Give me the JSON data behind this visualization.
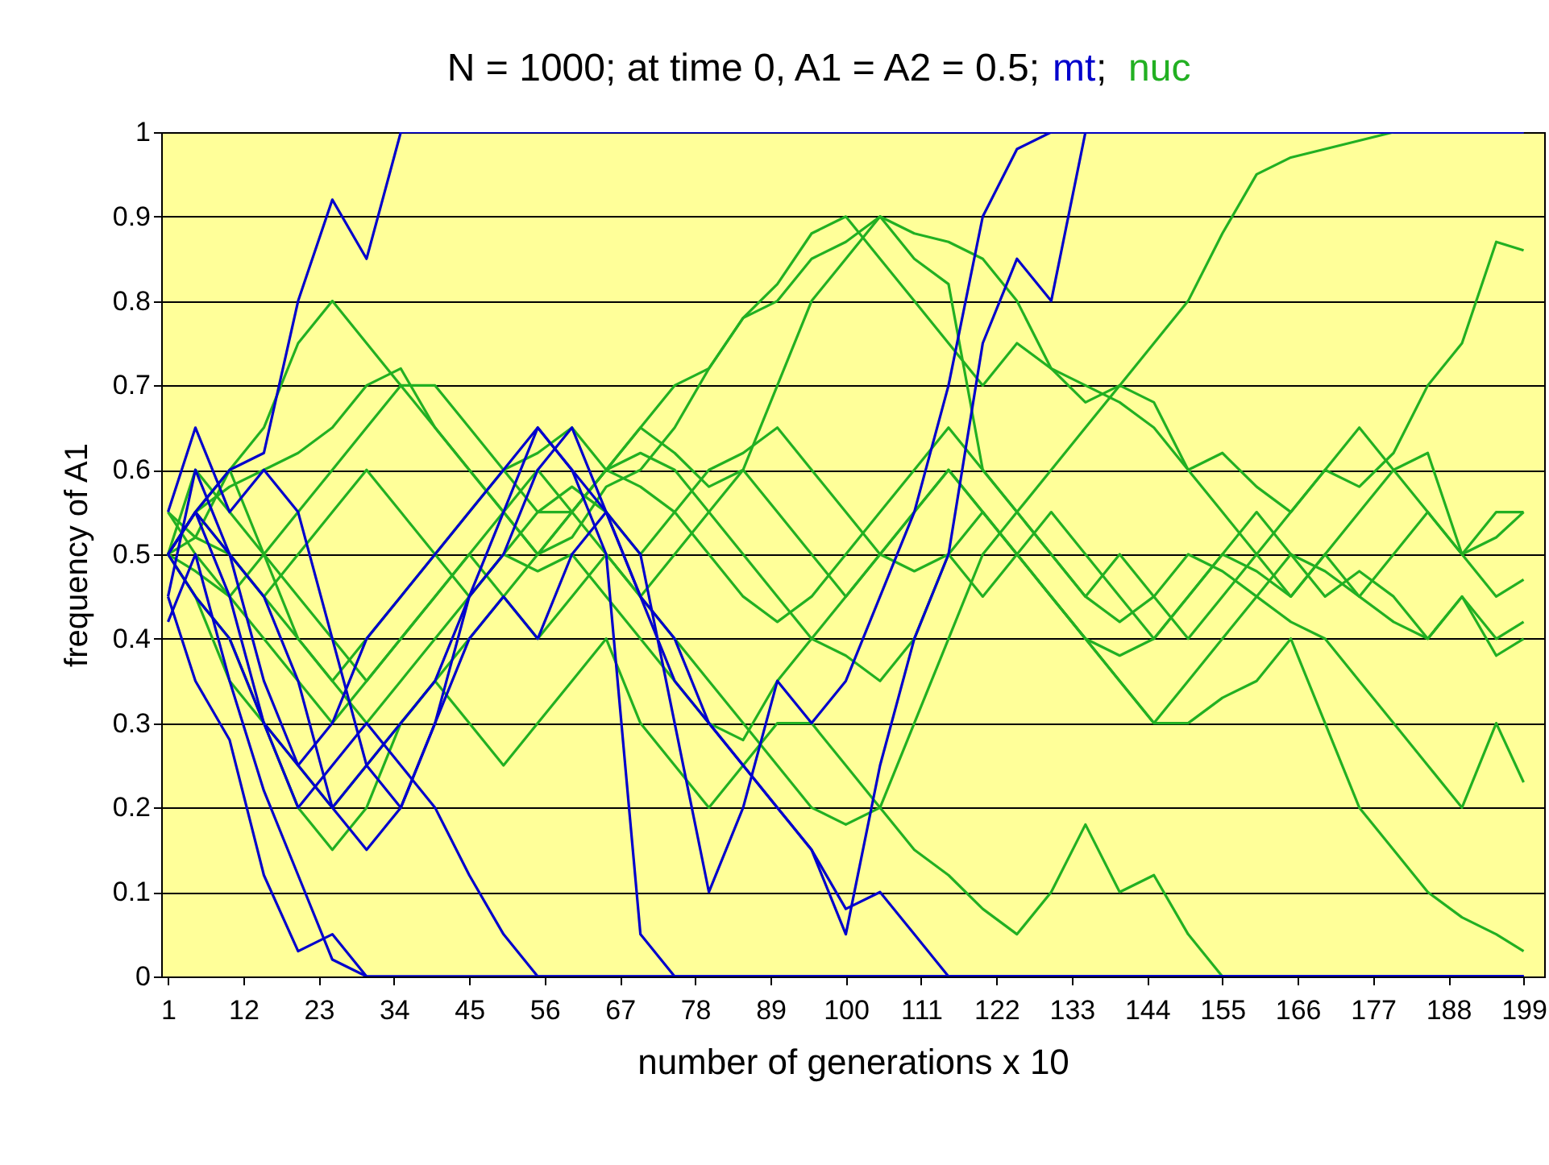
{
  "chart_data": {
    "type": "line",
    "title": "N = 1000; at time 0, A1 = A2 = 0.5;",
    "annotations": [
      ";"
    ],
    "xlabel": "number of generations x 10",
    "ylabel": "frequency of A1",
    "x": [
      1,
      5,
      10,
      15,
      20,
      25,
      30,
      35,
      40,
      45,
      50,
      55,
      60,
      65,
      70,
      75,
      80,
      85,
      90,
      95,
      100,
      105,
      110,
      115,
      120,
      125,
      130,
      135,
      140,
      145,
      150,
      155,
      160,
      165,
      170,
      175,
      180,
      185,
      190,
      195,
      199
    ],
    "xlim": [
      0,
      202
    ],
    "xticks": [
      1,
      12,
      23,
      34,
      45,
      56,
      67,
      78,
      89,
      100,
      111,
      122,
      133,
      144,
      155,
      166,
      177,
      188,
      199
    ],
    "ylim": [
      0,
      1
    ],
    "yticks": [
      0,
      0.1,
      0.2,
      0.3,
      0.4,
      0.5,
      0.6,
      0.7,
      0.8,
      0.9,
      1
    ],
    "grid": "y",
    "legend": "top",
    "marker": "none",
    "line_style": "solid",
    "series": [
      {
        "name": "mt",
        "color": "#0000cc",
        "values": [
          0.5,
          0.55,
          0.6,
          0.62,
          0.8,
          0.92,
          0.85,
          1,
          1,
          1,
          1,
          1,
          1,
          1,
          1,
          1,
          1,
          1,
          1,
          1,
          1,
          1,
          1,
          1,
          1,
          1,
          1,
          1,
          1,
          1,
          1,
          1,
          1,
          1,
          1,
          1,
          1,
          1,
          1,
          1,
          1
        ]
      },
      {
        "color": "#0000cc",
        "values": [
          0.45,
          0.35,
          0.28,
          0.12,
          0.03,
          0.05,
          0,
          0,
          0,
          0,
          0,
          0,
          0,
          0,
          0,
          0,
          0,
          0,
          0,
          0,
          0,
          0,
          0,
          0,
          0,
          0,
          0,
          0,
          0,
          0,
          0,
          0,
          0,
          0,
          0,
          0,
          0,
          0,
          0,
          0,
          0
        ]
      },
      {
        "color": "#0000cc",
        "values": [
          0.42,
          0.5,
          0.35,
          0.22,
          0.12,
          0.02,
          0,
          0,
          0,
          0,
          0,
          0,
          0,
          0,
          0,
          0,
          0,
          0,
          0,
          0,
          0,
          0,
          0,
          0,
          0,
          0,
          0,
          0,
          0,
          0,
          0,
          0,
          0,
          0,
          0,
          0,
          0,
          0,
          0,
          0,
          0
        ]
      },
      {
        "color": "#0000cc",
        "values": [
          0.5,
          0.55,
          0.45,
          0.3,
          0.2,
          0.25,
          0.3,
          0.25,
          0.2,
          0.12,
          0.05,
          0,
          0,
          0,
          0,
          0,
          0,
          0,
          0,
          0,
          0,
          0,
          0,
          0,
          0,
          0,
          0,
          0,
          0,
          0,
          0,
          0,
          0,
          0,
          0,
          0,
          0,
          0,
          0,
          0,
          0
        ]
      },
      {
        "color": "#0000cc",
        "values": [
          0.45,
          0.6,
          0.5,
          0.35,
          0.25,
          0.3,
          0.4,
          0.45,
          0.5,
          0.55,
          0.6,
          0.65,
          0.6,
          0.5,
          0.05,
          0,
          0,
          0,
          0,
          0,
          0,
          0,
          0,
          0,
          0,
          0,
          0,
          0,
          0,
          0,
          0,
          0,
          0,
          0,
          0,
          0,
          0,
          0,
          0,
          0,
          0
        ]
      },
      {
        "color": "#0000cc",
        "values": [
          0.55,
          0.65,
          0.55,
          0.6,
          0.55,
          0.4,
          0.25,
          0.2,
          0.3,
          0.45,
          0.5,
          0.6,
          0.65,
          0.55,
          0.45,
          0.4,
          0.3,
          0.25,
          0.2,
          0.15,
          0.08,
          0.1,
          0.05,
          0,
          0,
          0,
          0,
          0,
          0,
          0,
          0,
          0,
          0,
          0,
          0,
          0,
          0,
          0,
          0,
          0,
          0
        ]
      },
      {
        "color": "#0000cc",
        "values": [
          0.5,
          0.45,
          0.4,
          0.3,
          0.25,
          0.2,
          0.25,
          0.3,
          0.35,
          0.45,
          0.55,
          0.65,
          0.6,
          0.55,
          0.5,
          0.3,
          0.1,
          0.2,
          0.35,
          0.3,
          0.35,
          0.45,
          0.55,
          0.7,
          0.9,
          0.98,
          1,
          1,
          1,
          1,
          1,
          1,
          1,
          1,
          1,
          1,
          1,
          1,
          1,
          1,
          1
        ]
      },
      {
        "color": "#0000cc",
        "values": [
          0.5,
          0.55,
          0.5,
          0.45,
          0.35,
          0.2,
          0.15,
          0.2,
          0.3,
          0.4,
          0.45,
          0.4,
          0.5,
          0.55,
          0.45,
          0.35,
          0.3,
          0.25,
          0.2,
          0.15,
          0.05,
          0.25,
          0.4,
          0.5,
          0.75,
          0.85,
          0.8,
          1,
          1,
          1,
          1,
          1,
          1,
          1,
          1,
          1,
          1,
          1,
          1,
          1,
          1
        ]
      },
      {
        "name": "nuc",
        "color": "#22b022",
        "values": [
          0.5,
          0.55,
          0.58,
          0.6,
          0.62,
          0.65,
          0.7,
          0.72,
          0.65,
          0.6,
          0.55,
          0.5,
          0.52,
          0.58,
          0.6,
          0.65,
          0.72,
          0.78,
          0.8,
          0.85,
          0.87,
          0.9,
          0.88,
          0.87,
          0.85,
          0.8,
          0.72,
          0.68,
          0.7,
          0.75,
          0.8,
          0.88,
          0.95,
          0.97,
          0.98,
          0.99,
          1,
          null,
          null,
          null,
          null
        ]
      },
      {
        "color": "#22b022",
        "values": [
          0.55,
          0.5,
          0.45,
          0.4,
          0.35,
          0.3,
          0.35,
          0.4,
          0.45,
          0.5,
          0.55,
          0.6,
          0.55,
          0.6,
          0.65,
          0.62,
          0.58,
          0.6,
          0.7,
          0.8,
          0.85,
          0.9,
          0.85,
          0.82,
          0.6,
          0.55,
          0.5,
          0.45,
          0.5,
          0.45,
          0.4,
          0.45,
          0.5,
          0.55,
          0.6,
          0.58,
          0.62,
          0.7,
          0.75,
          0.87,
          0.86
        ]
      },
      {
        "color": "#22b022",
        "values": [
          0.5,
          0.52,
          0.6,
          0.65,
          0.75,
          0.8,
          0.75,
          0.7,
          0.65,
          0.6,
          0.55,
          0.5,
          0.55,
          0.6,
          0.65,
          0.7,
          0.72,
          0.78,
          0.82,
          0.88,
          0.9,
          0.85,
          0.8,
          0.75,
          0.7,
          0.75,
          0.72,
          0.7,
          0.68,
          0.65,
          0.6,
          0.62,
          0.58,
          0.55,
          0.6,
          0.65,
          0.6,
          0.55,
          0.5,
          0.52,
          0.55
        ]
      },
      {
        "color": "#22b022",
        "values": [
          0.5,
          0.48,
          0.45,
          0.5,
          0.55,
          0.6,
          0.65,
          0.7,
          0.7,
          0.65,
          0.6,
          0.55,
          0.55,
          0.6,
          0.58,
          0.55,
          0.5,
          0.45,
          0.42,
          0.45,
          0.5,
          0.55,
          0.6,
          0.65,
          0.6,
          0.55,
          0.5,
          0.45,
          0.42,
          0.45,
          0.5,
          0.48,
          0.45,
          0.5,
          0.48,
          0.45,
          0.5,
          0.55,
          0.5,
          0.45,
          0.47
        ]
      },
      {
        "color": "#22b022",
        "values": [
          0.55,
          0.52,
          0.5,
          0.45,
          0.4,
          0.35,
          0.3,
          0.35,
          0.4,
          0.45,
          0.5,
          0.55,
          0.58,
          0.55,
          0.5,
          0.55,
          0.6,
          0.62,
          0.65,
          0.6,
          0.55,
          0.5,
          0.48,
          0.5,
          0.45,
          0.5,
          0.55,
          0.5,
          0.45,
          0.4,
          0.45,
          0.5,
          0.55,
          0.5,
          0.45,
          0.48,
          0.45,
          0.4,
          0.45,
          0.4,
          0.42
        ]
      },
      {
        "color": "#22b022",
        "values": [
          0.5,
          0.45,
          0.4,
          0.3,
          0.25,
          0.2,
          0.25,
          0.3,
          0.35,
          0.4,
          0.45,
          0.5,
          0.55,
          0.5,
          0.45,
          0.5,
          0.55,
          0.6,
          0.55,
          0.5,
          0.45,
          0.5,
          0.55,
          0.6,
          0.55,
          0.5,
          0.45,
          0.4,
          0.35,
          0.3,
          0.35,
          0.4,
          0.45,
          0.42,
          0.4,
          0.35,
          0.3,
          0.25,
          0.2,
          0.3,
          0.23
        ]
      },
      {
        "color": "#22b022",
        "values": [
          0.5,
          0.55,
          0.5,
          0.45,
          0.5,
          0.55,
          0.6,
          0.55,
          0.5,
          0.45,
          0.5,
          0.48,
          0.5,
          0.45,
          0.4,
          0.35,
          0.3,
          0.28,
          0.35,
          0.4,
          0.45,
          0.5,
          0.55,
          0.6,
          0.55,
          0.5,
          0.45,
          0.4,
          0.35,
          0.3,
          0.3,
          0.33,
          0.35,
          0.4,
          0.3,
          0.2,
          0.15,
          0.1,
          0.07,
          0.05,
          0.03
        ]
      },
      {
        "color": "#22b022",
        "values": [
          0.5,
          0.45,
          0.35,
          0.3,
          0.2,
          0.15,
          0.2,
          0.3,
          0.35,
          0.3,
          0.25,
          0.3,
          0.35,
          0.4,
          0.3,
          0.25,
          0.2,
          0.25,
          0.3,
          0.3,
          0.25,
          0.2,
          0.15,
          0.12,
          0.08,
          0.05,
          0.1,
          0.18,
          0.1,
          0.12,
          0.05,
          0,
          null,
          null,
          null,
          null,
          null,
          null,
          null,
          null,
          null
        ]
      },
      {
        "color": "#22b022",
        "values": [
          0.5,
          0.55,
          0.6,
          0.5,
          0.45,
          0.4,
          0.35,
          0.4,
          0.45,
          0.5,
          0.45,
          0.4,
          0.45,
          0.5,
          0.45,
          0.4,
          0.35,
          0.3,
          0.25,
          0.2,
          0.18,
          0.2,
          0.3,
          0.4,
          0.5,
          0.55,
          0.6,
          0.65,
          0.7,
          0.68,
          0.6,
          0.55,
          0.5,
          0.45,
          0.5,
          0.55,
          0.6,
          0.62,
          0.5,
          0.55,
          0.55
        ]
      },
      {
        "color": "#22b022",
        "values": [
          0.5,
          0.6,
          0.55,
          0.5,
          0.4,
          0.35,
          0.4,
          0.45,
          0.5,
          0.55,
          0.6,
          0.62,
          0.65,
          0.6,
          0.62,
          0.6,
          0.55,
          0.5,
          0.45,
          0.4,
          0.38,
          0.35,
          0.4,
          0.5,
          0.55,
          0.5,
          0.45,
          0.4,
          0.38,
          0.4,
          0.45,
          0.5,
          0.48,
          0.45,
          0.5,
          0.45,
          0.42,
          0.4,
          0.45,
          0.38,
          0.4
        ]
      }
    ]
  }
}
